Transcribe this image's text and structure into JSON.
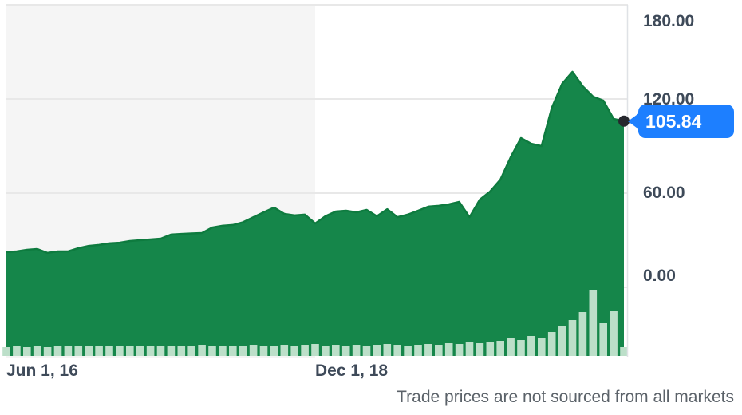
{
  "chart": {
    "last_price_label": "105.84",
    "y_axis": {
      "ticks": [
        "180.00",
        "120.00",
        "60.00",
        "0.00"
      ]
    },
    "x_axis": {
      "ticks": [
        "Jun 1, 16",
        "Dec 1, 18"
      ]
    },
    "disclaimer": "Trade prices are not sourced from all markets",
    "colors": {
      "area": "#15864a",
      "line": "#0e7b3f",
      "volume": "#bcdfc9",
      "badge": "#1d7fff",
      "marker": "#26282e",
      "grid": "#e8e8e8",
      "axis": "#dfe2e6",
      "band": "#f5f5f5"
    }
  },
  "chart_data": {
    "type": "area",
    "title": "",
    "x_unit": "month",
    "x_tick_labels": [
      "Jun 1, 16",
      "Dec 1, 18"
    ],
    "x_tick_positions": [
      0,
      30
    ],
    "yticks": [
      0,
      60,
      120,
      180
    ],
    "ylim": [
      0,
      180
    ],
    "grid": true,
    "legend_position": "none",
    "last_price": 105.84,
    "background_bands": [
      {
        "from_index": 0,
        "to_index": 30,
        "color": "#f5f5f5"
      }
    ],
    "series": [
      {
        "name": "price",
        "values": [
          22.4,
          22.9,
          23.9,
          24.4,
          21.9,
          22.9,
          22.9,
          24.9,
          26.4,
          27.0,
          28.0,
          28.4,
          29.5,
          30.0,
          30.5,
          31.0,
          33.6,
          34.0,
          34.3,
          34.6,
          38.1,
          39.2,
          39.7,
          41.5,
          44.7,
          47.8,
          50.8,
          46.8,
          45.8,
          46.3,
          40.7,
          45.3,
          48.3,
          48.8,
          47.8,
          49.3,
          45.3,
          49.8,
          44.7,
          46.3,
          48.8,
          51.4,
          51.9,
          52.9,
          54.4,
          44.7,
          55.9,
          61.0,
          68.6,
          82.9,
          95.1,
          91.5,
          90.0,
          114.4,
          129.7,
          137.3,
          128.1,
          121.5,
          119.0,
          107.3,
          105.84
        ]
      },
      {
        "name": "volume",
        "unit": "relative_height_px",
        "values": [
          11,
          12,
          11,
          12,
          11,
          12,
          12,
          13,
          12,
          12,
          13,
          12,
          13,
          12,
          13,
          13,
          12,
          13,
          13,
          14,
          13,
          13,
          12,
          13,
          14,
          13,
          13,
          14,
          13,
          14,
          15,
          13,
          14,
          13,
          14,
          13,
          14,
          15,
          14,
          13,
          14,
          15,
          14,
          16,
          15,
          18,
          16,
          18,
          19,
          22,
          20,
          25,
          23,
          30,
          38,
          45,
          55,
          83,
          41,
          56,
          11
        ]
      }
    ]
  }
}
